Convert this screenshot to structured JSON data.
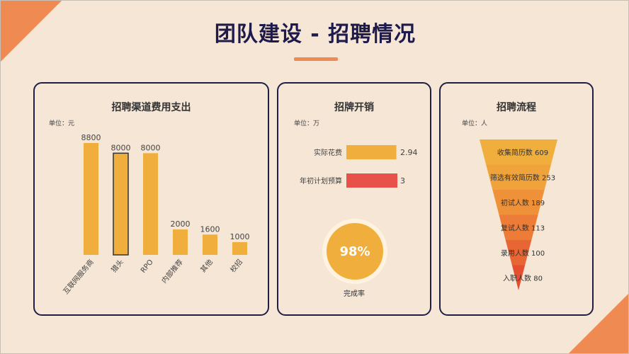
{
  "page": {
    "title": "团队建设 - 招聘情况"
  },
  "colors": {
    "background": "#f5e6d6",
    "accent": "#ee8a52",
    "bar": "#f0ae3c",
    "budget_bar": "#e8504a",
    "frame": "#1f1f45"
  },
  "panels": {
    "channel_cost": {
      "title": "招聘渠道费用支出",
      "unit": "单位：元"
    },
    "expense": {
      "title": "招牌开销",
      "unit": "单位：万",
      "completion_value": "98%",
      "completion_label": "完成率"
    },
    "process": {
      "title": "招聘流程",
      "unit": "单位：人"
    }
  },
  "chart_data": [
    {
      "type": "bar",
      "title": "招聘渠道费用支出",
      "unit": "单位：元",
      "categories": [
        "互联网服务商",
        "猎头",
        "RPO",
        "内部推荐",
        "其他",
        "校招"
      ],
      "values": [
        8800,
        8000,
        8000,
        2000,
        1600,
        1000
      ],
      "highlighted_category": "猎头"
    },
    {
      "type": "bar",
      "orientation": "horizontal",
      "title": "招牌开销",
      "unit": "单位：万",
      "categories": [
        "实际花费",
        "年初计划预算"
      ],
      "values": [
        2.94,
        3
      ],
      "completion_rate_percent": 98
    },
    {
      "type": "funnel",
      "title": "招聘流程",
      "unit": "单位：人",
      "stages": [
        "收集简历数",
        "筛选有效简历数",
        "初试人数",
        "复试人数",
        "录用人数",
        "入职人数"
      ],
      "values": [
        609,
        253,
        189,
        113,
        100,
        80
      ]
    }
  ]
}
